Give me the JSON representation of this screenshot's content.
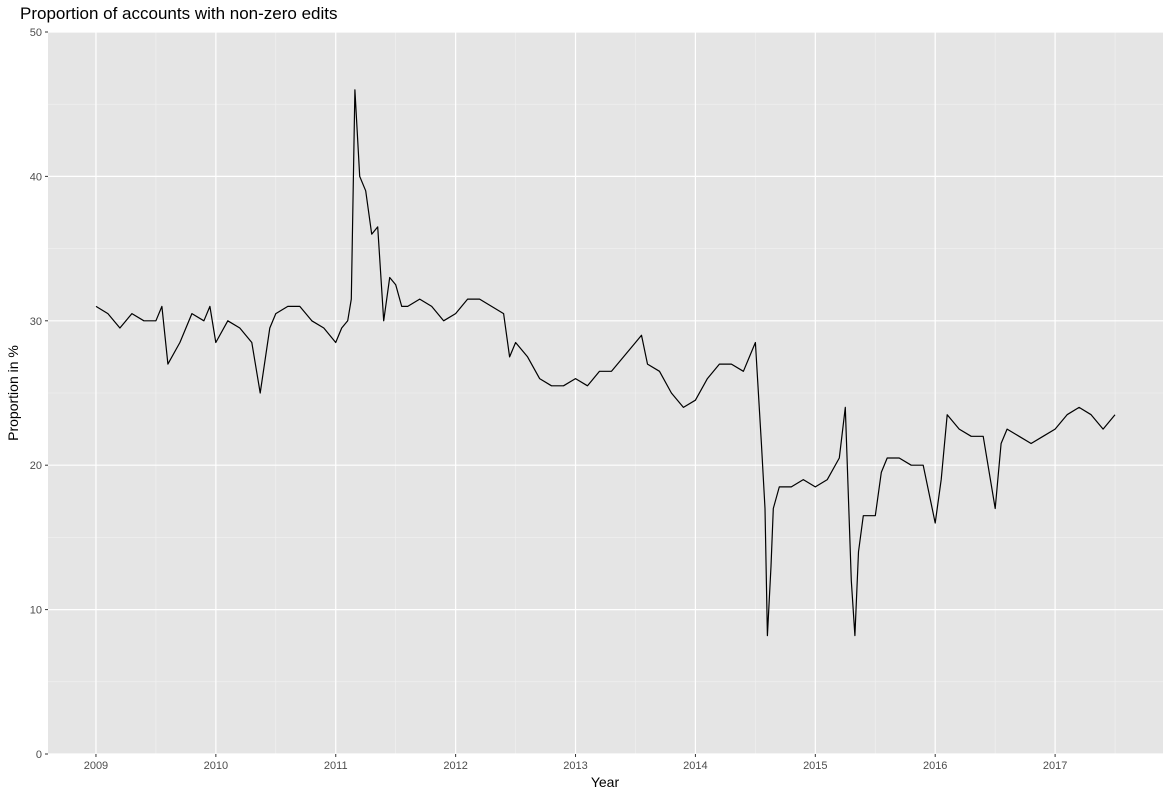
{
  "chart_data": {
    "type": "line",
    "title": "Proportion of accounts with non-zero edits",
    "xlabel": "Year",
    "ylabel": "Proportion in %",
    "xlim": [
      2008.6,
      2017.9
    ],
    "ylim": [
      0,
      50
    ],
    "x_ticks": [
      2009,
      2010,
      2011,
      2012,
      2013,
      2014,
      2015,
      2016,
      2017
    ],
    "x_tick_labels": [
      "2009",
      "2010",
      "2011",
      "2012",
      "2013",
      "2014",
      "2015",
      "2016",
      "2017"
    ],
    "y_ticks": [
      0,
      10,
      20,
      30,
      40,
      50
    ],
    "y_tick_labels": [
      "0",
      "10",
      "20",
      "30",
      "40",
      "50"
    ],
    "grid": true,
    "legend": "none",
    "colors": {
      "panel": "#e5e5e5",
      "grid_major": "#ffffff",
      "line": "#000000",
      "axis_text": "#4d4d4d"
    },
    "series": [
      {
        "x": [
          2009.0,
          2009.1,
          2009.2,
          2009.3,
          2009.4,
          2009.5,
          2009.55,
          2009.6,
          2009.7,
          2009.8,
          2009.9,
          2009.95,
          2010.0,
          2010.1,
          2010.2,
          2010.3,
          2010.37,
          2010.45,
          2010.5,
          2010.6,
          2010.7,
          2010.8,
          2010.9,
          2011.0,
          2011.05,
          2011.1,
          2011.13,
          2011.16,
          2011.2,
          2011.25,
          2011.3,
          2011.35,
          2011.4,
          2011.45,
          2011.5,
          2011.55,
          2011.6,
          2011.7,
          2011.8,
          2011.9,
          2012.0,
          2012.1,
          2012.2,
          2012.3,
          2012.4,
          2012.45,
          2012.5,
          2012.6,
          2012.7,
          2012.8,
          2012.9,
          2013.0,
          2013.1,
          2013.2,
          2013.3,
          2013.4,
          2013.5,
          2013.55,
          2013.6,
          2013.7,
          2013.8,
          2013.9,
          2014.0,
          2014.1,
          2014.2,
          2014.3,
          2014.4,
          2014.45,
          2014.5,
          2014.55,
          2014.58,
          2014.6,
          2014.63,
          2014.65,
          2014.7,
          2014.8,
          2014.9,
          2015.0,
          2015.1,
          2015.2,
          2015.25,
          2015.3,
          2015.33,
          2015.36,
          2015.4,
          2015.5,
          2015.55,
          2015.6,
          2015.7,
          2015.8,
          2015.9,
          2016.0,
          2016.05,
          2016.1,
          2016.2,
          2016.3,
          2016.4,
          2016.5,
          2016.55,
          2016.6,
          2016.7,
          2016.8,
          2016.9,
          2017.0,
          2017.1,
          2017.2,
          2017.3,
          2017.4,
          2017.5
        ],
        "values": [
          31.0,
          30.5,
          29.5,
          30.5,
          30.0,
          30.0,
          31.0,
          27.0,
          28.5,
          30.5,
          30.0,
          31.0,
          28.5,
          30.0,
          29.5,
          28.5,
          25.0,
          29.5,
          30.5,
          31.0,
          31.0,
          30.0,
          29.5,
          28.5,
          29.5,
          30.0,
          31.5,
          46.0,
          40.0,
          39.0,
          36.0,
          36.5,
          30.0,
          33.0,
          32.5,
          31.0,
          31.0,
          31.5,
          31.0,
          30.0,
          30.5,
          31.5,
          31.5,
          31.0,
          30.5,
          27.5,
          28.5,
          27.5,
          26.0,
          25.5,
          25.5,
          26.0,
          25.5,
          26.5,
          26.5,
          27.5,
          28.5,
          29.0,
          27.0,
          26.5,
          25.0,
          24.0,
          24.5,
          26.0,
          27.0,
          27.0,
          26.5,
          27.5,
          28.5,
          21.5,
          17.0,
          8.2,
          13.0,
          17.0,
          18.5,
          18.5,
          19.0,
          18.5,
          19.0,
          20.5,
          24.0,
          12.0,
          8.2,
          14.0,
          16.5,
          16.5,
          19.5,
          20.5,
          20.5,
          20.0,
          20.0,
          16.0,
          19.0,
          23.5,
          22.5,
          22.0,
          22.0,
          17.0,
          21.5,
          22.5,
          22.0,
          21.5,
          22.0,
          22.5,
          23.5,
          24.0,
          23.5,
          22.5,
          23.5
        ]
      }
    ]
  }
}
